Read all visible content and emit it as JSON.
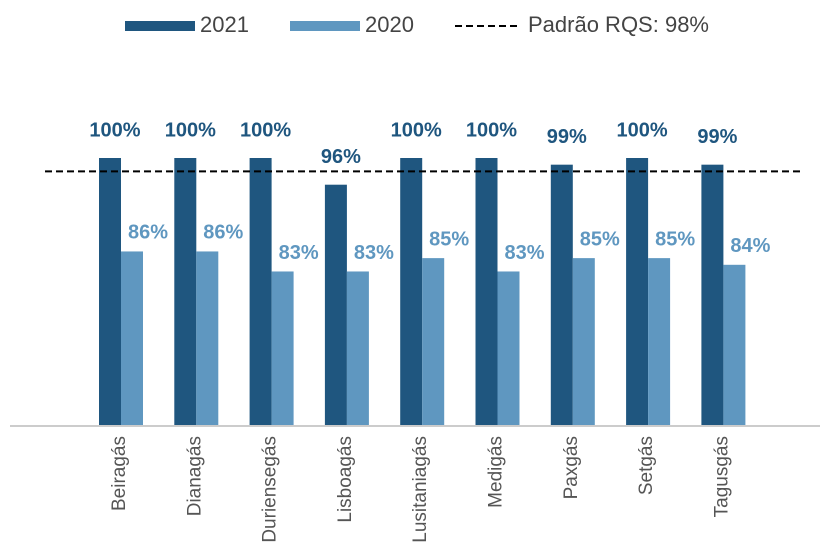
{
  "chart_data": {
    "type": "bar",
    "categories": [
      "Beiragás",
      "Dianagás",
      "Duriensegás",
      "Lisboagás",
      "Lusitaniagás",
      "Medigás",
      "Paxgás",
      "Setgás",
      "Tagusgás"
    ],
    "series": [
      {
        "name": "2021",
        "color": "#1f567f",
        "values": [
          100,
          100,
          100,
          96,
          100,
          100,
          99,
          100,
          99
        ],
        "value_labels": [
          "100%",
          "100%",
          "100%",
          "96%",
          "100%",
          "100%",
          "99%",
          "100%",
          "99%"
        ]
      },
      {
        "name": "2020",
        "color": "#5f97c0",
        "values": [
          86,
          86,
          83,
          83,
          85,
          83,
          85,
          85,
          84
        ],
        "value_labels": [
          "86%",
          "86%",
          "83%",
          "83%",
          "85%",
          "83%",
          "85%",
          "85%",
          "84%"
        ]
      }
    ],
    "reference": {
      "value": 98,
      "label": "Padrão RQS: 98%",
      "color": "#000000"
    },
    "ylim": [
      60,
      100
    ],
    "grid": false,
    "legend": "top"
  }
}
